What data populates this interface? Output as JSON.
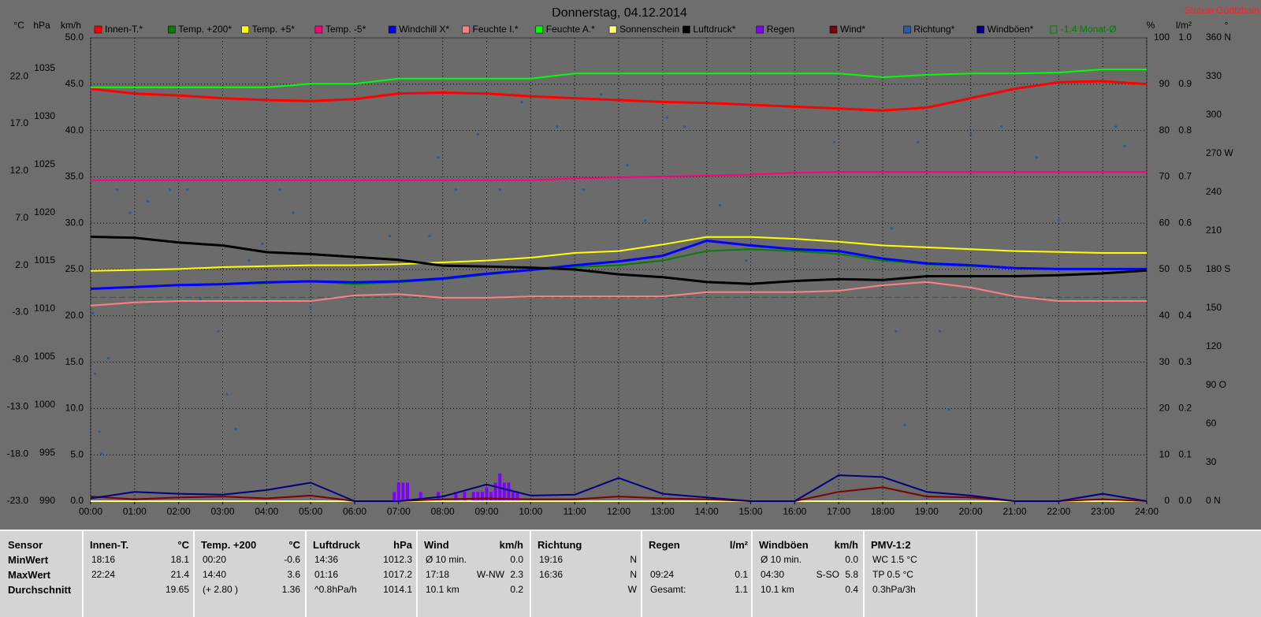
{
  "chart_data": {
    "type": "line",
    "title": "Donnerstag, 04.12.2014",
    "station": "Station Göritzhain",
    "grid": true,
    "x": [
      0,
      1,
      2,
      3,
      4,
      5,
      6,
      7,
      8,
      9,
      10,
      11,
      12,
      13,
      14,
      15,
      16,
      17,
      18,
      19,
      20,
      21,
      22,
      23,
      24
    ],
    "xlim": [
      0,
      24
    ],
    "xticks": [
      {
        "value": 0,
        "label": "00:00"
      },
      {
        "value": 1,
        "label": "01:00"
      },
      {
        "value": 2,
        "label": "02:00"
      },
      {
        "value": 3,
        "label": "03:00"
      },
      {
        "value": 4,
        "label": "04:00"
      },
      {
        "value": 5,
        "label": "05:00"
      },
      {
        "value": 6,
        "label": "06:00"
      },
      {
        "value": 7,
        "label": "07:00"
      },
      {
        "value": 8,
        "label": "08:00"
      },
      {
        "value": 9,
        "label": "09:00"
      },
      {
        "value": 10,
        "label": "10:00"
      },
      {
        "value": 11,
        "label": "11:00"
      },
      {
        "value": 12,
        "label": "12:00"
      },
      {
        "value": 13,
        "label": "13:00"
      },
      {
        "value": 14,
        "label": "14:00"
      },
      {
        "value": 15,
        "label": "15:00"
      },
      {
        "value": 16,
        "label": "16:00"
      },
      {
        "value": 17,
        "label": "17:00"
      },
      {
        "value": 18,
        "label": "18:00"
      },
      {
        "value": 19,
        "label": "19:00"
      },
      {
        "value": 20,
        "label": "20:00"
      },
      {
        "value": 21,
        "label": "21:00"
      },
      {
        "value": 22,
        "label": "22:00"
      },
      {
        "value": 23,
        "label": "23:00"
      },
      {
        "value": 24,
        "label": "24:00"
      }
    ],
    "axes": {
      "temp": {
        "label": "°C",
        "lim": [
          -23,
          26.1
        ],
        "ticks": [
          {
            "value": -23,
            "label": "-23.0"
          },
          {
            "value": -18,
            "label": "-18.0"
          },
          {
            "value": -13,
            "label": "-13.0"
          },
          {
            "value": -8,
            "label": "-8.0"
          },
          {
            "value": -3,
            "label": "-3.0"
          },
          {
            "value": 2,
            "label": "2.0"
          },
          {
            "value": 7,
            "label": "7.0"
          },
          {
            "value": 12,
            "label": "12.0"
          },
          {
            "value": 17,
            "label": "17.0"
          },
          {
            "value": 22,
            "label": "22.0"
          }
        ]
      },
      "hpa": {
        "label": "hPa",
        "lim": [
          990,
          1038.2
        ],
        "ticks": [
          990,
          995,
          1000,
          1005,
          1010,
          1015,
          1020,
          1025,
          1030,
          1035
        ]
      },
      "kmh": {
        "label": "km/h",
        "lim": [
          0,
          50
        ],
        "ticks": [
          {
            "value": 0,
            "label": "0.0"
          },
          {
            "value": 5,
            "label": "5.0"
          },
          {
            "value": 10,
            "label": "10.0"
          },
          {
            "value": 15,
            "label": "15.0"
          },
          {
            "value": 20,
            "label": "20.0"
          },
          {
            "value": 25,
            "label": "25.0"
          },
          {
            "value": 30,
            "label": "30.0"
          },
          {
            "value": 35,
            "label": "35.0"
          },
          {
            "value": 40,
            "label": "40.0"
          },
          {
            "value": 45,
            "label": "45.0"
          },
          {
            "value": 50,
            "label": "50.0"
          }
        ]
      },
      "pct": {
        "label": "%",
        "lim": [
          0,
          100
        ],
        "ticks": [
          0,
          10,
          20,
          30,
          40,
          50,
          60,
          70,
          80,
          90,
          100
        ]
      },
      "rain": {
        "label": "l/m²",
        "lim": [
          0,
          1
        ],
        "ticks": [
          {
            "value": 0,
            "label": "0.0"
          },
          {
            "value": 0.1,
            "label": "0.1"
          },
          {
            "value": 0.2,
            "label": "0.2"
          },
          {
            "value": 0.3,
            "label": "0.3"
          },
          {
            "value": 0.4,
            "label": "0.4"
          },
          {
            "value": 0.5,
            "label": "0.5"
          },
          {
            "value": 0.6,
            "label": "0.6"
          },
          {
            "value": 0.7,
            "label": "0.7"
          },
          {
            "value": 0.8,
            "label": "0.8"
          },
          {
            "value": 0.9,
            "label": "0.9"
          },
          {
            "value": 1,
            "label": "1.0"
          }
        ]
      },
      "dir": {
        "label": "°",
        "lim": [
          0,
          360
        ],
        "ticks": [
          {
            "value": 0,
            "label": "0 N"
          },
          30,
          60,
          {
            "value": 90,
            "label": "90 O"
          },
          120,
          150,
          {
            "value": 180,
            "label": "180 S"
          },
          210,
          240,
          {
            "value": 270,
            "label": "270 W"
          },
          300,
          330,
          {
            "value": 360,
            "label": "360 N"
          }
        ]
      }
    },
    "series": [
      {
        "name": "Innen-T.*",
        "color": "#ff0000",
        "axis": "temp",
        "kind": "line",
        "values": [
          20.7,
          20.2,
          20.0,
          19.7,
          19.5,
          19.4,
          19.6,
          20.2,
          20.3,
          20.2,
          19.9,
          19.7,
          19.5,
          19.3,
          19.2,
          19.0,
          18.8,
          18.6,
          18.4,
          18.7,
          19.7,
          20.7,
          21.4,
          21.5,
          21.2
        ]
      },
      {
        "name": "Temp. +200*",
        "color": "#008000",
        "axis": "temp",
        "kind": "line",
        "values": [
          -0.5,
          -0.3,
          -0.1,
          0.0,
          0.1,
          0.3,
          0.0,
          0.2,
          0.5,
          1.0,
          1.5,
          1.8,
          2.0,
          2.5,
          3.5,
          3.7,
          3.5,
          3.2,
          2.5,
          2.1,
          1.9,
          1.7,
          1.6,
          1.6,
          1.5
        ]
      },
      {
        "name": "Temp. +5*",
        "color": "#ffff00",
        "axis": "temp",
        "kind": "line",
        "values": [
          1.4,
          1.5,
          1.6,
          1.8,
          1.9,
          2.0,
          2.0,
          2.1,
          2.3,
          2.5,
          2.8,
          3.3,
          3.5,
          4.2,
          5.0,
          5.0,
          4.8,
          4.5,
          4.1,
          3.9,
          3.7,
          3.5,
          3.4,
          3.3,
          3.3
        ]
      },
      {
        "name": "Temp. -5*",
        "color": "#ff0080",
        "axis": "temp",
        "kind": "line",
        "values": [
          11.0,
          11.0,
          11.0,
          11.0,
          11.0,
          11.0,
          11.0,
          11.0,
          11.0,
          11.0,
          11.0,
          11.2,
          11.3,
          11.4,
          11.5,
          11.6,
          11.8,
          11.9,
          11.9,
          11.9,
          11.9,
          11.9,
          11.9,
          11.9,
          11.9
        ]
      },
      {
        "name": "Windchill X*",
        "color": "#0000ff",
        "axis": "temp",
        "kind": "line",
        "values": [
          -0.5,
          -0.3,
          -0.1,
          0.0,
          0.2,
          0.3,
          0.2,
          0.3,
          0.6,
          1.1,
          1.5,
          2.0,
          2.4,
          3.0,
          4.6,
          4.1,
          3.7,
          3.5,
          2.7,
          2.2,
          2.0,
          1.7,
          1.6,
          1.6,
          1.6
        ]
      },
      {
        "name": "Feuchte I.*",
        "color": "#ff8080",
        "axis": "pct",
        "kind": "line",
        "values": [
          42.2,
          42.9,
          43.2,
          43.2,
          43.2,
          43.2,
          44.4,
          44.7,
          43.9,
          43.9,
          44.2,
          44.2,
          44.2,
          44.2,
          45.1,
          45.1,
          45.1,
          45.4,
          46.6,
          47.3,
          46.1,
          44.2,
          43.2,
          43.2,
          43.2
        ]
      },
      {
        "name": "Feuchte A.*",
        "color": "#00ff00",
        "axis": "pct",
        "kind": "line",
        "values": [
          89.3,
          89.3,
          89.3,
          89.3,
          89.3,
          90.1,
          90.1,
          91.2,
          91.2,
          91.2,
          91.2,
          92.3,
          92.3,
          92.3,
          92.3,
          92.3,
          92.3,
          92.3,
          91.5,
          92.0,
          92.3,
          92.3,
          92.5,
          93.2,
          93.2
        ]
      },
      {
        "name": "Sonnenschein",
        "color": "#ffff80",
        "axis": "kmh",
        "kind": "line",
        "values": [
          0,
          0,
          0,
          0,
          0,
          0,
          0,
          0,
          0,
          0,
          0,
          0,
          0,
          0,
          0,
          0,
          0,
          0,
          0,
          0,
          0,
          0,
          0,
          0,
          0
        ]
      },
      {
        "name": "Luftdruck*",
        "color": "#000000",
        "axis": "hpa",
        "kind": "line",
        "values": [
          1017.5,
          1017.4,
          1016.9,
          1016.6,
          1015.9,
          1015.7,
          1015.4,
          1015.1,
          1014.5,
          1014.4,
          1014.3,
          1014.1,
          1013.6,
          1013.3,
          1012.8,
          1012.6,
          1012.9,
          1013.1,
          1013.0,
          1013.4,
          1013.4,
          1013.4,
          1013.5,
          1013.7,
          1014.0
        ]
      },
      {
        "name": "Regen",
        "color": "#8000ff",
        "axis": "rain",
        "kind": "bar",
        "x": [
          6.9,
          7.0,
          7.1,
          7.2,
          7.5,
          7.9,
          8.3,
          8.5,
          8.7,
          8.8,
          8.9,
          9.0,
          9.1,
          9.2,
          9.3,
          9.4,
          9.5,
          9.6,
          9.7
        ],
        "values": [
          0.02,
          0.04,
          0.04,
          0.04,
          0.02,
          0.02,
          0.02,
          0.02,
          0.02,
          0.02,
          0.02,
          0.03,
          0.02,
          0.04,
          0.06,
          0.04,
          0.04,
          0.02,
          0.02
        ]
      },
      {
        "name": "Wind*",
        "color": "#800000",
        "axis": "kmh",
        "kind": "line",
        "values": [
          0.5,
          0.2,
          0.4,
          0.5,
          0.3,
          0.6,
          0,
          0,
          0.2,
          0.3,
          0.2,
          0.2,
          0.5,
          0.3,
          0.2,
          0,
          0,
          1.0,
          1.5,
          0.5,
          0.4,
          0,
          0,
          0.2,
          0
        ]
      },
      {
        "name": "Richtung*",
        "color": "#2a5aa0",
        "axis": "dir",
        "kind": "dots",
        "x": [
          0.05,
          0.1,
          0.2,
          0.25,
          0.4,
          0.6,
          0.9,
          1.3,
          1.8,
          2.2,
          2.5,
          2.9,
          3.1,
          3.3,
          3.6,
          3.9,
          4.3,
          4.6,
          5.0,
          6.8,
          7.7,
          7.9,
          8.3,
          8.8,
          9.3,
          9.8,
          10.6,
          11.2,
          11.6,
          12.2,
          12.6,
          13.1,
          13.5,
          14.3,
          14.9,
          16.9,
          17.5,
          18.2,
          18.3,
          18.5,
          18.8,
          19.3,
          19.5,
          20.0,
          20.7,
          21.5,
          22.0,
          23.3,
          23.5
        ],
        "values": [
          146,
          99,
          54,
          37,
          111,
          242,
          224,
          233,
          242,
          242,
          157,
          132,
          83,
          56,
          187,
          200,
          242,
          224,
          151,
          206,
          206,
          267,
          242,
          285,
          242,
          310,
          291,
          242,
          316,
          261,
          218,
          298,
          291,
          230,
          187,
          279,
          304,
          212,
          132,
          59,
          279,
          132,
          71,
          285,
          291,
          267,
          218,
          291,
          276
        ]
      },
      {
        "name": "Windböen*",
        "color": "#000080",
        "axis": "kmh",
        "kind": "line",
        "values": [
          0.3,
          1.0,
          0.8,
          0.7,
          1.2,
          2.0,
          0,
          0,
          0.5,
          1.8,
          0.6,
          0.7,
          2.5,
          0.8,
          0.4,
          0,
          0,
          2.8,
          2.6,
          1.0,
          0.6,
          0,
          0,
          0.8,
          0
        ]
      },
      {
        "name": "-1.4 Monat-Ø",
        "color": "#008000",
        "axis": "temp",
        "kind": "hline",
        "value": -1.4
      }
    ]
  },
  "stats_table": {
    "row_labels": [
      "Sensor",
      "MinWert",
      "MaxWert",
      "Durchschnitt"
    ],
    "columns": [
      {
        "title": "Innen-T.",
        "unit": "°C",
        "rows": [
          {
            "left": "18:16",
            "right": "18.1"
          },
          {
            "left": "22:24",
            "right": "21.4"
          },
          {
            "right": "19.65"
          }
        ]
      },
      {
        "title": "Temp. +200",
        "unit": "°C",
        "rows": [
          {
            "left": "00:20",
            "right": "-0.6"
          },
          {
            "left": "14:40",
            "right": "3.6"
          },
          {
            "left": "(+ 2.80 )",
            "right": "1.36"
          }
        ]
      },
      {
        "title": "Luftdruck",
        "unit": "hPa",
        "rows": [
          {
            "left": "14:36",
            "right": "1012.3"
          },
          {
            "left": "01:16",
            "right": "1017.2"
          },
          {
            "left": "^0.8hPa/h",
            "right": "1014.1"
          }
        ]
      },
      {
        "title": "Wind",
        "unit": "km/h",
        "rows": [
          {
            "left": "Ø 10 min.",
            "right": "0.0"
          },
          {
            "left": "17:18",
            "mid": "W-NW",
            "right": "2.3"
          },
          {
            "left": "10.1 km",
            "right": "0.2"
          }
        ]
      },
      {
        "title": "Richtung",
        "rows": [
          {
            "left": "19:16",
            "right": "N"
          },
          {
            "left": "16:36",
            "right": "N"
          },
          {
            "right": "W"
          }
        ]
      },
      {
        "title": "Regen",
        "unit": "l/m²",
        "rows": [
          {},
          {
            "left": "09:24",
            "right": "0.1"
          },
          {
            "left": "Gesamt:",
            "right": "1.1"
          }
        ]
      },
      {
        "title": "Windböen",
        "unit": "km/h",
        "rows": [
          {
            "left": "Ø 10 min.",
            "right": "0.0"
          },
          {
            "left": "04:30",
            "mid": "S-SO",
            "right": "5.8"
          },
          {
            "left": "10.1 km",
            "right": "0.4"
          }
        ]
      },
      {
        "title": "PMV-1:2",
        "rows": [
          {
            "left": "WC 1.5 °C"
          },
          {
            "left": "TP 0.5 °C"
          },
          {
            "left": "0.3hPa/3h"
          }
        ]
      }
    ]
  }
}
